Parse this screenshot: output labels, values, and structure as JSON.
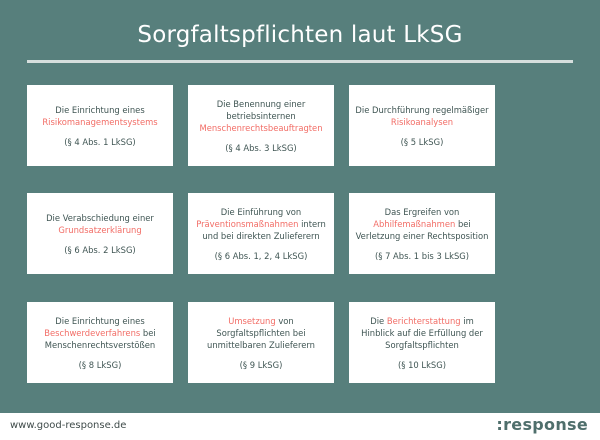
{
  "title": "Sorgfaltspflichten laut LkSG",
  "colors": {
    "background": "#577f7c",
    "highlight": "#f26d66",
    "text": "#3f5553"
  },
  "cards": [
    {
      "lines": [
        [
          {
            "t": "Die Einrichtung eines"
          }
        ],
        [
          {
            "t": "Risikomanagementsystems",
            "hl": true
          }
        ]
      ],
      "ref": "(§ 4 Abs. 1 LkSG)"
    },
    {
      "lines": [
        [
          {
            "t": "Die Benennung einer"
          }
        ],
        [
          {
            "t": "betriebsinternen"
          }
        ],
        [
          {
            "t": "Menschenrechtsbeauftragten",
            "hl": true
          }
        ]
      ],
      "ref": "(§ 4 Abs. 3 LkSG)"
    },
    {
      "lines": [
        [
          {
            "t": "Die Durchführung regelmäßiger"
          }
        ],
        [
          {
            "t": "Risikoanalysen",
            "hl": true
          }
        ]
      ],
      "ref": "(§ 5 LkSG)"
    },
    {
      "lines": [
        [
          {
            "t": "Die Verabschiedung einer"
          }
        ],
        [
          {
            "t": "Grundsatzerklärung",
            "hl": true
          }
        ]
      ],
      "ref": "(§ 6 Abs. 2 LkSG)"
    },
    {
      "lines": [
        [
          {
            "t": "Die Einführung von"
          }
        ],
        [
          {
            "t": "Präventionsmaßnahmen",
            "hl": true
          },
          {
            "t": " intern"
          }
        ],
        [
          {
            "t": "und bei direkten Zulieferern"
          }
        ]
      ],
      "ref": "(§ 6 Abs. 1, 2, 4 LkSG)"
    },
    {
      "lines": [
        [
          {
            "t": "Das Ergreifen von"
          }
        ],
        [
          {
            "t": "Abhilfemaßnahmen",
            "hl": true
          },
          {
            "t": " bei"
          }
        ],
        [
          {
            "t": "Verletzung einer Rechtsposition"
          }
        ]
      ],
      "ref": "(§ 7 Abs. 1 bis 3 LkSG)"
    },
    {
      "lines": [
        [
          {
            "t": "Die Einrichtung eines"
          }
        ],
        [
          {
            "t": "Beschwerdeverfahrens",
            "hl": true
          },
          {
            "t": " bei"
          }
        ],
        [
          {
            "t": "Menschenrechtsverstößen"
          }
        ]
      ],
      "ref": "(§ 8 LkSG)"
    },
    {
      "lines": [
        [
          {
            "t": "Umsetzung",
            "hl": true
          },
          {
            "t": " von"
          }
        ],
        [
          {
            "t": "Sorgfaltspflichten bei"
          }
        ],
        [
          {
            "t": "unmittelbaren Zulieferern"
          }
        ]
      ],
      "ref": "(§ 9 LkSG)"
    },
    {
      "lines": [
        [
          {
            "t": "Die "
          },
          {
            "t": "Berichterstattung",
            "hl": true
          },
          {
            "t": " im"
          }
        ],
        [
          {
            "t": "Hinblick auf die Erfüllung der"
          }
        ],
        [
          {
            "t": "Sorgfaltspflichten"
          }
        ]
      ],
      "ref": "(§ 10 LkSG)"
    }
  ],
  "footer": {
    "url": "www.good-response.de",
    "logo": ":response"
  }
}
